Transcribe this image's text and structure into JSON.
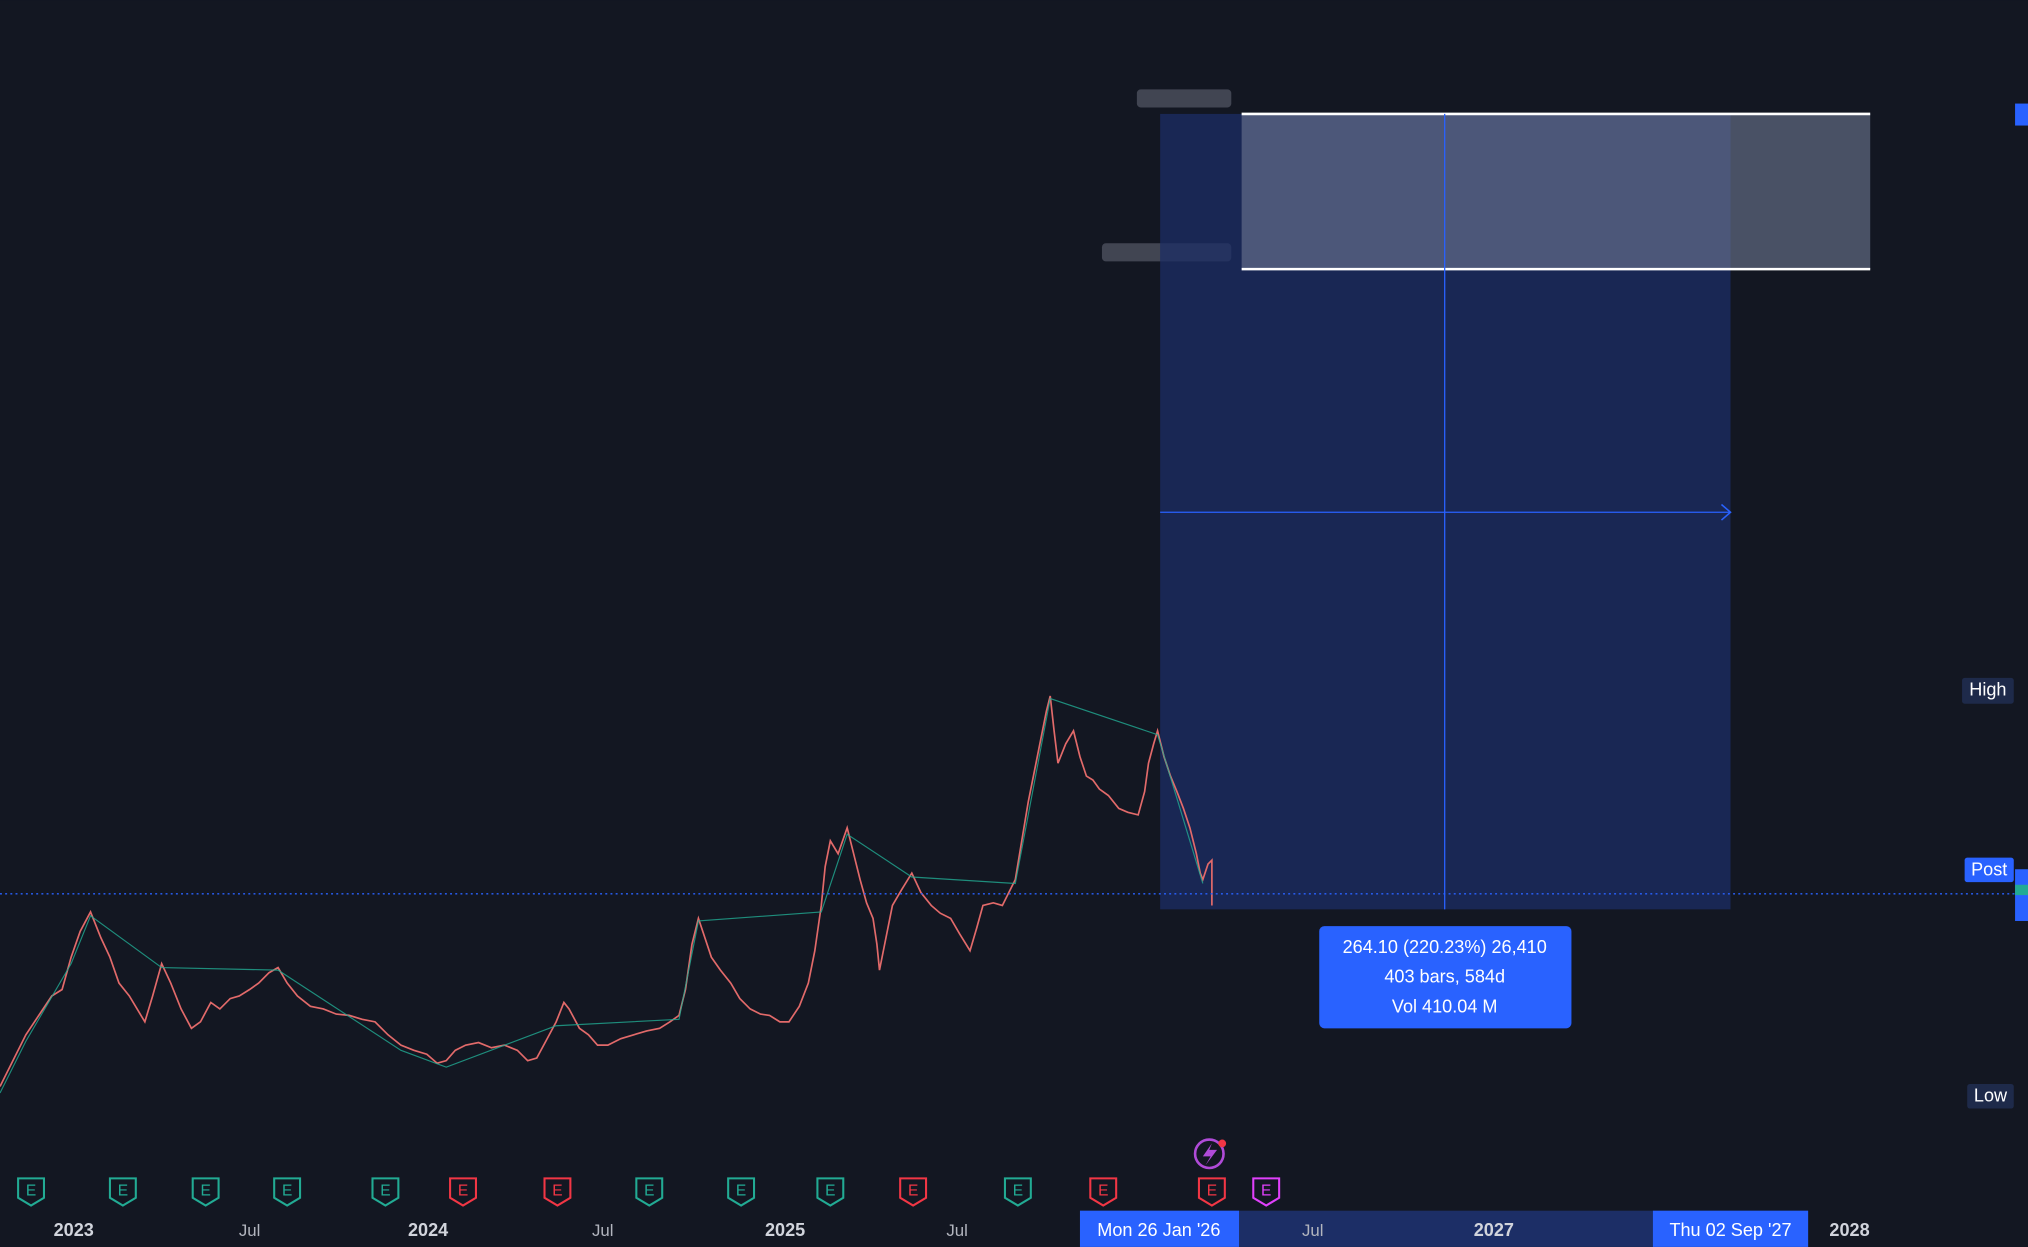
{
  "axis_labels": [
    "2023",
    "Jul",
    "2024",
    "Jul",
    "2025",
    "Jul",
    "Jul",
    "2027",
    "2028"
  ],
  "crosshair_dates": {
    "start": "Mon 26 Jan '26",
    "end": "Thu 02 Sep '27"
  },
  "measure_tooltip": {
    "line1": "264.10 (220.23%) 26,410",
    "line2": "403 bars, 584d",
    "line3": "Vol 410.04 M"
  },
  "price_tags": {
    "high": "High",
    "post": "Post",
    "low": "Low"
  },
  "earnings": [
    {
      "label": "E",
      "color": "#22ab94"
    },
    {
      "label": "E",
      "color": "#22ab94"
    },
    {
      "label": "E",
      "color": "#22ab94"
    },
    {
      "label": "E",
      "color": "#22ab94"
    },
    {
      "label": "E",
      "color": "#22ab94"
    },
    {
      "label": "E",
      "color": "#f23645"
    },
    {
      "label": "E",
      "color": "#f23645"
    },
    {
      "label": "E",
      "color": "#22ab94"
    },
    {
      "label": "E",
      "color": "#22ab94"
    },
    {
      "label": "E",
      "color": "#22ab94"
    },
    {
      "label": "E",
      "color": "#f23645"
    },
    {
      "label": "E",
      "color": "#22ab94"
    },
    {
      "label": "E",
      "color": "#f23645"
    },
    {
      "label": "E",
      "color": "#f23645"
    },
    {
      "label": "E",
      "color": "#e040fb"
    }
  ]
}
